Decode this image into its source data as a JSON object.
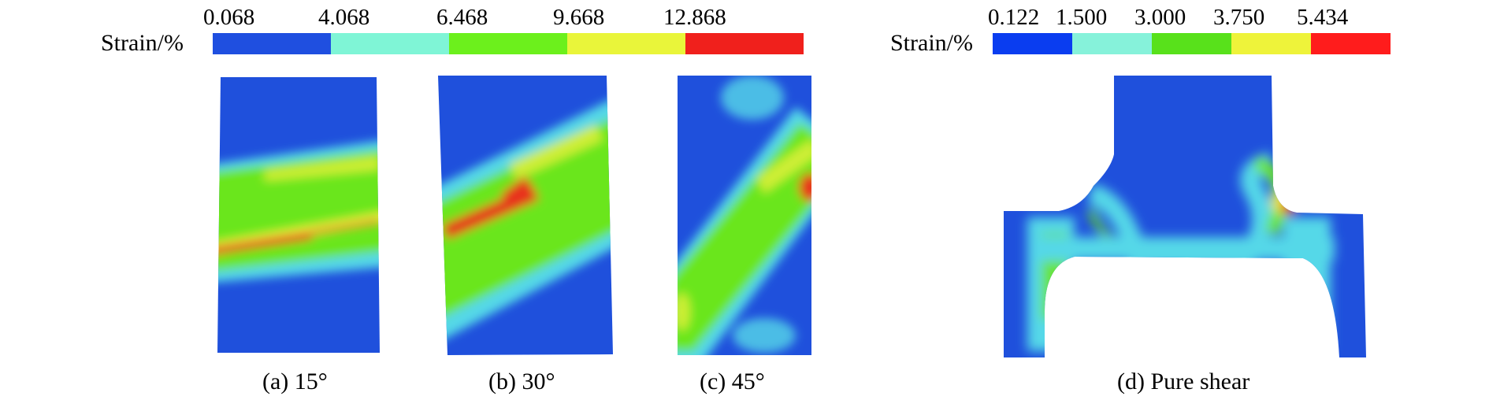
{
  "legend_left": {
    "label": "Strain/%",
    "ticks": [
      "0.068",
      "4.068",
      "6.468",
      "9.668",
      "12.868"
    ],
    "colors": [
      "#1f4fe0",
      "#7ff5d6",
      "#6cf01c",
      "#e9f53a",
      "#f0201c"
    ]
  },
  "legend_right": {
    "label": "Strain/%",
    "ticks": [
      "0.122",
      "1.500",
      "3.000",
      "3.750",
      "5.434"
    ],
    "colors": [
      "#0a3df0",
      "#86f2da",
      "#58e11b",
      "#eef33a",
      "#ff1c1c"
    ]
  },
  "captions": {
    "a": "(a) 15°",
    "b": "(b) 30°",
    "c": "(c) 45°",
    "d": "(d) Pure shear"
  },
  "palette": {
    "blue": "#1f50dc",
    "cyan": "#55d8e8",
    "green": "#6ae61e",
    "yellow": "#e7f03a",
    "red": "#e8301c"
  }
}
